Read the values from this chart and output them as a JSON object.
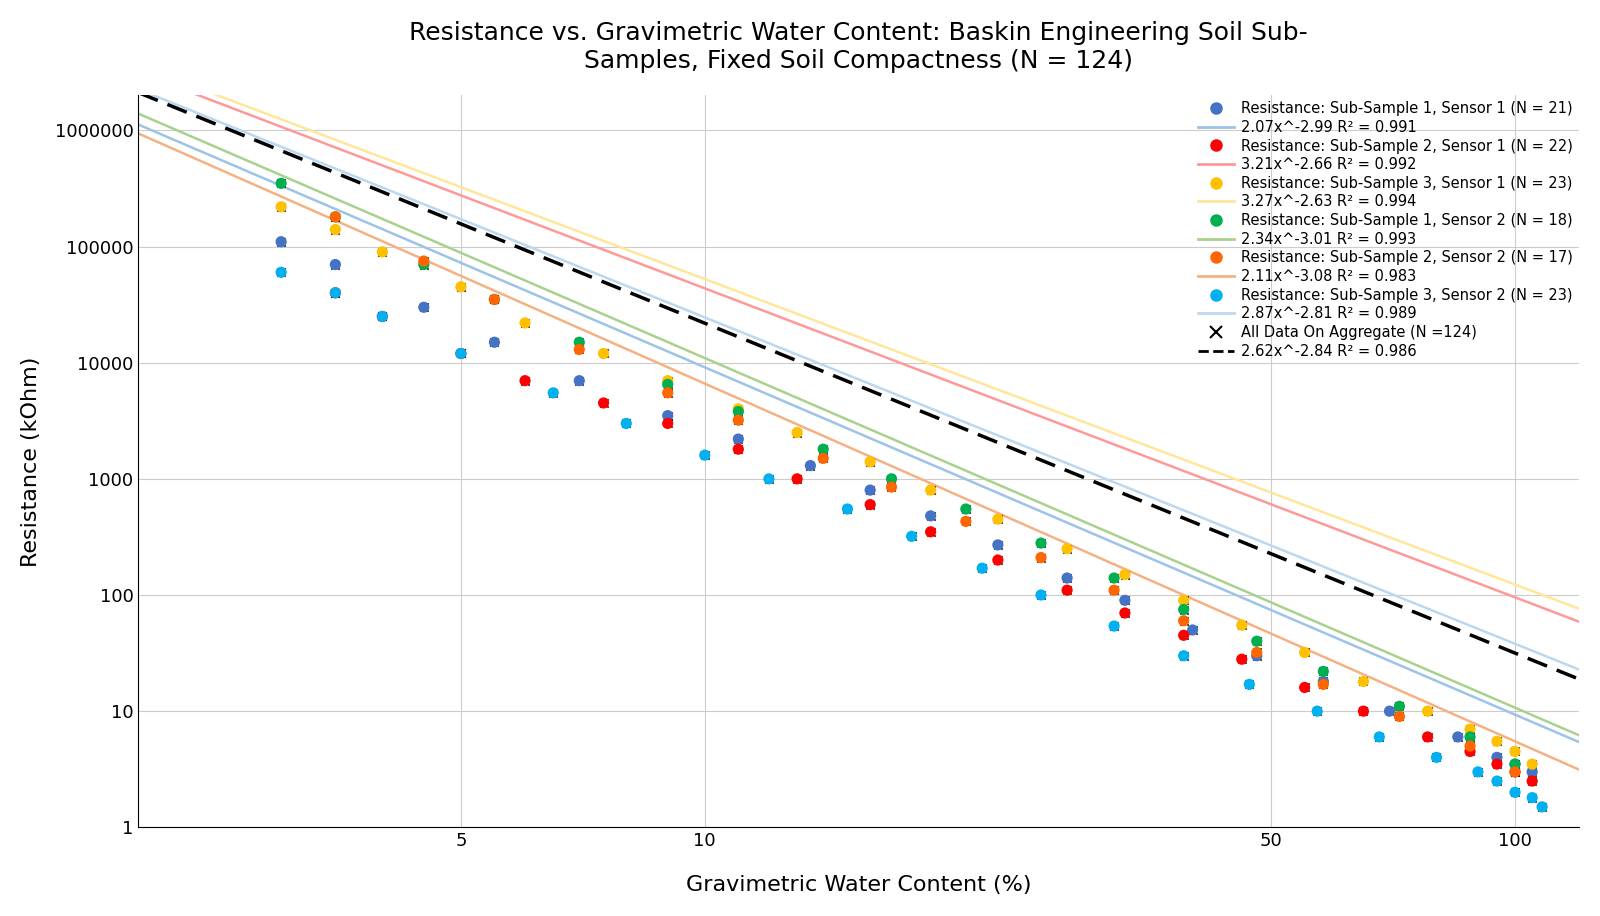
{
  "title": "Resistance vs. Gravimetric Water Content: Baskin Engineering Soil Sub-\nSamples, Fixed Soil Compactness (N = 124)",
  "xlabel": "Gravimetric Water Content (%)",
  "ylabel": "Resistance (kOhm)",
  "series": [
    {
      "label": "Resistance: Sub-Sample 1, Sensor 1 (N = 21)",
      "color": "#4472C4",
      "log_coeff": 6.95,
      "exp": -2.99,
      "fit_label": "2.07x^-2.99 R² = 0.991",
      "fit_color": "#9DC3E6",
      "data_x": [
        3.0,
        3.5,
        4.5,
        5.5,
        7.0,
        9.0,
        11.0,
        13.5,
        16.0,
        19.0,
        23.0,
        28.0,
        33.0,
        40.0,
        48.0,
        58.0,
        70.0,
        85.0,
        95.0,
        100.0,
        105.0
      ],
      "data_y": [
        110000,
        70000,
        30000,
        15000,
        7000,
        3500,
        2200,
        1300,
        800,
        480,
        270,
        140,
        90,
        50,
        30,
        18,
        10,
        6,
        4,
        3.5,
        3.0
      ]
    },
    {
      "label": "Resistance: Sub-Sample 2, Sensor 1 (N = 22)",
      "color": "#FF0000",
      "log_coeff": 7.3,
      "exp": -2.66,
      "fit_label": "3.21x^-2.66 R² = 0.992",
      "fit_color": "#FF9999",
      "data_x": [
        3.5,
        4.0,
        5.0,
        6.0,
        7.5,
        9.0,
        11.0,
        13.0,
        16.0,
        19.0,
        23.0,
        28.0,
        33.0,
        39.0,
        46.0,
        55.0,
        65.0,
        78.0,
        88.0,
        95.0,
        100.0,
        105.0
      ],
      "data_y": [
        40000,
        25000,
        12000,
        7000,
        4500,
        3000,
        1800,
        1000,
        600,
        350,
        200,
        110,
        70,
        45,
        28,
        16,
        10,
        6,
        4.5,
        3.5,
        3.0,
        2.5
      ]
    },
    {
      "label": "Resistance: Sub-Sample 3, Sensor 1 (N = 23)",
      "color": "#FFC000",
      "log_coeff": 7.35,
      "exp": -2.63,
      "fit_label": "3.27x^-2.63 R² = 0.994",
      "fit_color": "#FFE699",
      "data_x": [
        3.0,
        3.5,
        4.0,
        5.0,
        6.0,
        7.5,
        9.0,
        11.0,
        13.0,
        16.0,
        19.0,
        23.0,
        28.0,
        33.0,
        39.0,
        46.0,
        55.0,
        65.0,
        78.0,
        88.0,
        95.0,
        100.0,
        105.0
      ],
      "data_y": [
        220000,
        140000,
        90000,
        45000,
        22000,
        12000,
        7000,
        4000,
        2500,
        1400,
        800,
        450,
        250,
        150,
        90,
        55,
        32,
        18,
        10,
        7,
        5.5,
        4.5,
        3.5
      ]
    },
    {
      "label": "Resistance: Sub-Sample 1, Sensor 2 (N = 18)",
      "color": "#00B050",
      "log_coeff": 7.05,
      "exp": -3.01,
      "fit_label": "2.34x^-3.01 R² = 0.993",
      "fit_color": "#A9D18E",
      "data_x": [
        3.0,
        3.5,
        4.5,
        5.5,
        7.0,
        9.0,
        11.0,
        14.0,
        17.0,
        21.0,
        26.0,
        32.0,
        39.0,
        48.0,
        58.0,
        72.0,
        88.0,
        100.0
      ],
      "data_y": [
        350000,
        180000,
        70000,
        35000,
        15000,
        6500,
        3800,
        1800,
        1000,
        550,
        280,
        140,
        75,
        40,
        22,
        11,
        6,
        3.5
      ]
    },
    {
      "label": "Resistance: Sub-Sample 2, Sensor 2 (N = 17)",
      "color": "#FF6600",
      "log_coeff": 6.9,
      "exp": -3.08,
      "fit_label": "2.11x^-3.08 R² = 0.983",
      "fit_color": "#F4B183",
      "data_x": [
        3.5,
        4.5,
        5.5,
        7.0,
        9.0,
        11.0,
        14.0,
        17.0,
        21.0,
        26.0,
        32.0,
        39.0,
        48.0,
        58.0,
        72.0,
        88.0,
        100.0
      ],
      "data_y": [
        180000,
        75000,
        35000,
        13000,
        5500,
        3200,
        1500,
        850,
        430,
        210,
        110,
        60,
        32,
        17,
        9,
        5,
        3.0
      ]
    },
    {
      "label": "Resistance: Sub-Sample 3, Sensor 2 (N = 23)",
      "color": "#00B0F0",
      "log_coeff": 7.2,
      "exp": -2.81,
      "fit_label": "2.87x^-2.81 R² = 0.989",
      "fit_color": "#BDD7EE",
      "data_x": [
        3.0,
        3.5,
        4.0,
        5.0,
        6.5,
        8.0,
        10.0,
        12.0,
        15.0,
        18.0,
        22.0,
        26.0,
        32.0,
        39.0,
        47.0,
        57.0,
        68.0,
        80.0,
        90.0,
        95.0,
        100.0,
        105.0,
        108.0
      ],
      "data_y": [
        60000,
        40000,
        25000,
        12000,
        5500,
        3000,
        1600,
        1000,
        550,
        320,
        170,
        100,
        54,
        30,
        17,
        10,
        6,
        4,
        3,
        2.5,
        2.0,
        1.8,
        1.5
      ]
    }
  ],
  "aggregate": {
    "label": "All Data On Aggregate (N =124)",
    "fit_label": "2.62x^-2.84 R² = 0.986",
    "log_coeff": 7.18,
    "exp": -2.84,
    "color": "black",
    "fit_color": "black",
    "marker": "x"
  },
  "x_range": [
    2.0,
    120.0
  ],
  "y_range": [
    1.0,
    2000000.0
  ],
  "x_ticks": [
    5,
    10,
    50,
    100
  ],
  "y_ticks": [
    1,
    10,
    100,
    1000,
    10000,
    100000,
    1000000
  ],
  "background_color": "#FFFFFF",
  "grid_color": "#CCCCCC"
}
